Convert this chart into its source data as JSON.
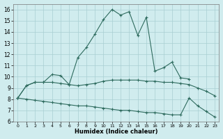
{
  "line1_x": [
    0,
    1,
    2,
    3,
    4,
    5,
    6,
    7,
    8,
    9,
    10,
    11,
    12,
    13,
    14,
    15,
    16,
    17,
    18,
    19,
    20
  ],
  "line1_y": [
    8.1,
    9.2,
    9.5,
    9.5,
    10.2,
    10.1,
    9.3,
    11.7,
    12.6,
    13.8,
    15.1,
    16.0,
    15.5,
    15.8,
    13.7,
    15.3,
    10.5,
    10.8,
    11.3,
    9.9,
    9.8
  ],
  "line2_x": [
    0,
    1,
    2,
    3,
    4,
    5,
    6,
    7,
    8,
    9,
    10,
    11,
    12,
    13,
    14,
    15,
    16,
    17,
    18,
    19,
    20,
    21,
    22,
    23
  ],
  "line2_y": [
    8.1,
    9.2,
    9.5,
    9.5,
    9.5,
    9.4,
    9.3,
    9.2,
    9.3,
    9.4,
    9.6,
    9.7,
    9.7,
    9.7,
    9.7,
    9.6,
    9.6,
    9.5,
    9.5,
    9.4,
    9.3,
    9.0,
    8.7,
    8.3
  ],
  "line3_x": [
    0,
    1,
    2,
    3,
    4,
    5,
    6,
    7,
    8,
    9,
    10,
    11,
    12,
    13,
    14,
    15,
    16,
    17,
    18,
    19,
    20,
    21,
    22,
    23
  ],
  "line3_y": [
    8.1,
    8.0,
    7.9,
    7.8,
    7.7,
    7.6,
    7.5,
    7.4,
    7.4,
    7.3,
    7.2,
    7.1,
    7.0,
    7.0,
    6.9,
    6.8,
    6.8,
    6.7,
    6.6,
    6.6,
    8.1,
    7.4,
    6.9,
    6.4
  ],
  "line_color": "#2e6b5e",
  "bg_color": "#d0ecee",
  "grid_color": "#a8cfd2",
  "xlabel": "Humidex (Indice chaleur)",
  "ylim": [
    6,
    16.5
  ],
  "xlim": [
    -0.5,
    23.5
  ],
  "yticks": [
    6,
    7,
    8,
    9,
    10,
    11,
    12,
    13,
    14,
    15,
    16
  ],
  "xticks": [
    0,
    1,
    2,
    3,
    4,
    5,
    6,
    7,
    8,
    9,
    10,
    11,
    12,
    13,
    14,
    15,
    16,
    17,
    18,
    19,
    20,
    21,
    22,
    23
  ]
}
